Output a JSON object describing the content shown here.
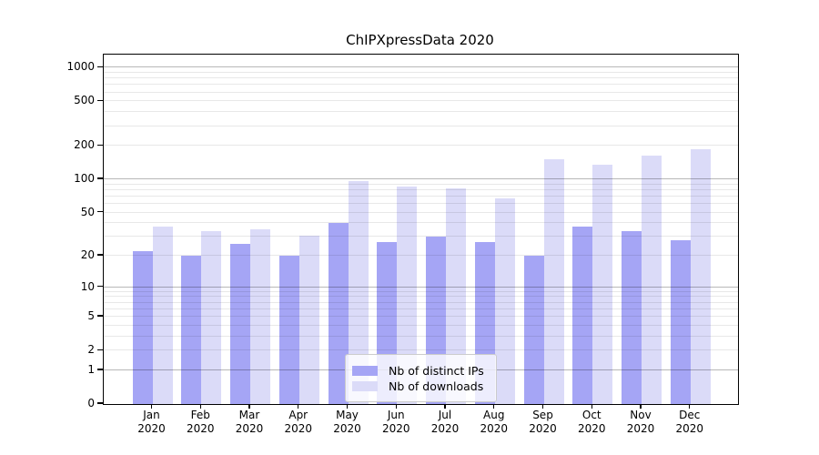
{
  "chart_data": {
    "type": "bar",
    "title": "ChIPXpressData 2020",
    "months": [
      "Jan",
      "Feb",
      "Mar",
      "Apr",
      "May",
      "Jun",
      "Jul",
      "Aug",
      "Sep",
      "Oct",
      "Nov",
      "Dec"
    ],
    "year": "2020",
    "series": [
      {
        "name": "Nb of distinct IPs",
        "color": "#a5a5f5",
        "values": [
          22,
          20,
          26,
          20,
          40,
          27,
          30,
          27,
          20,
          37,
          34,
          28
        ]
      },
      {
        "name": "Nb of downloads",
        "color": "#dbdbf8",
        "values": [
          37,
          34,
          35,
          31,
          97,
          86,
          83,
          68,
          152,
          135,
          165,
          185
        ]
      }
    ],
    "yscale": "symlog",
    "y_ticks": [
      0,
      1,
      2,
      5,
      10,
      20,
      50,
      100,
      200,
      500,
      1000
    ],
    "y_major_gridlines": [
      1,
      10,
      100,
      1000
    ],
    "ylim": [
      0,
      1300
    ],
    "grid": true,
    "xlabel": "",
    "ylabel": "",
    "legend_position": "lower center inside"
  }
}
